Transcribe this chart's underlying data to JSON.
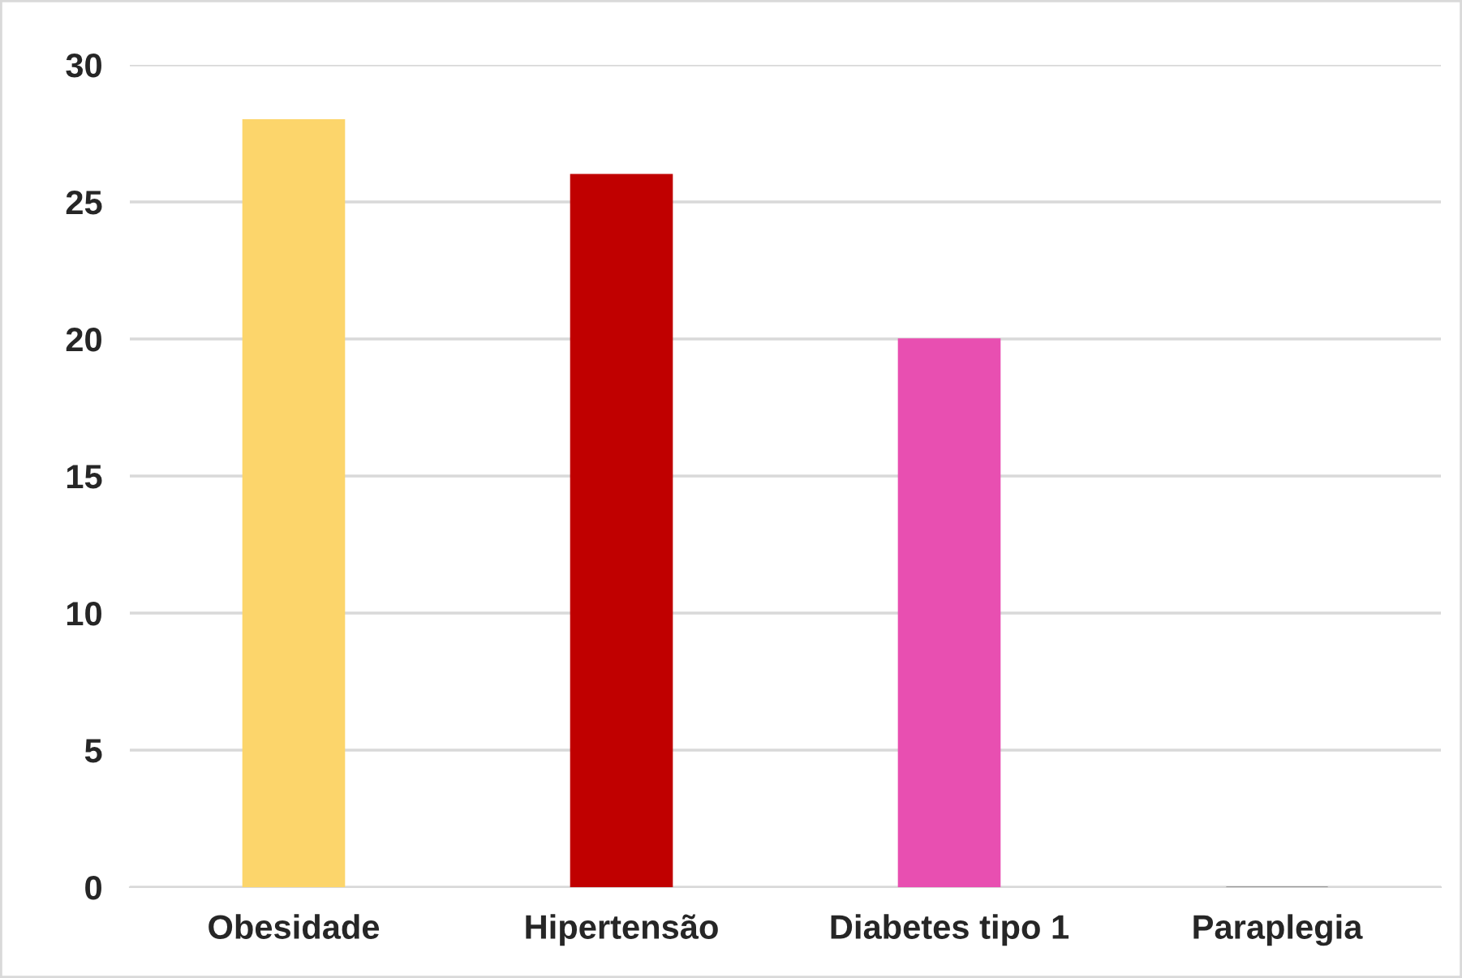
{
  "chart_data": {
    "type": "bar",
    "categories": [
      "Obesidade",
      "Hipertensão",
      "Diabetes tipo 1",
      "Paraplegia"
    ],
    "values": [
      28,
      26,
      20,
      0
    ],
    "colors": [
      "#fcd56b",
      "#c00000",
      "#e84fb1",
      "#7f7f7f"
    ],
    "ylim": [
      0,
      30
    ],
    "yticks": [
      0,
      5,
      10,
      15,
      20,
      25,
      30
    ],
    "grid": "y"
  }
}
